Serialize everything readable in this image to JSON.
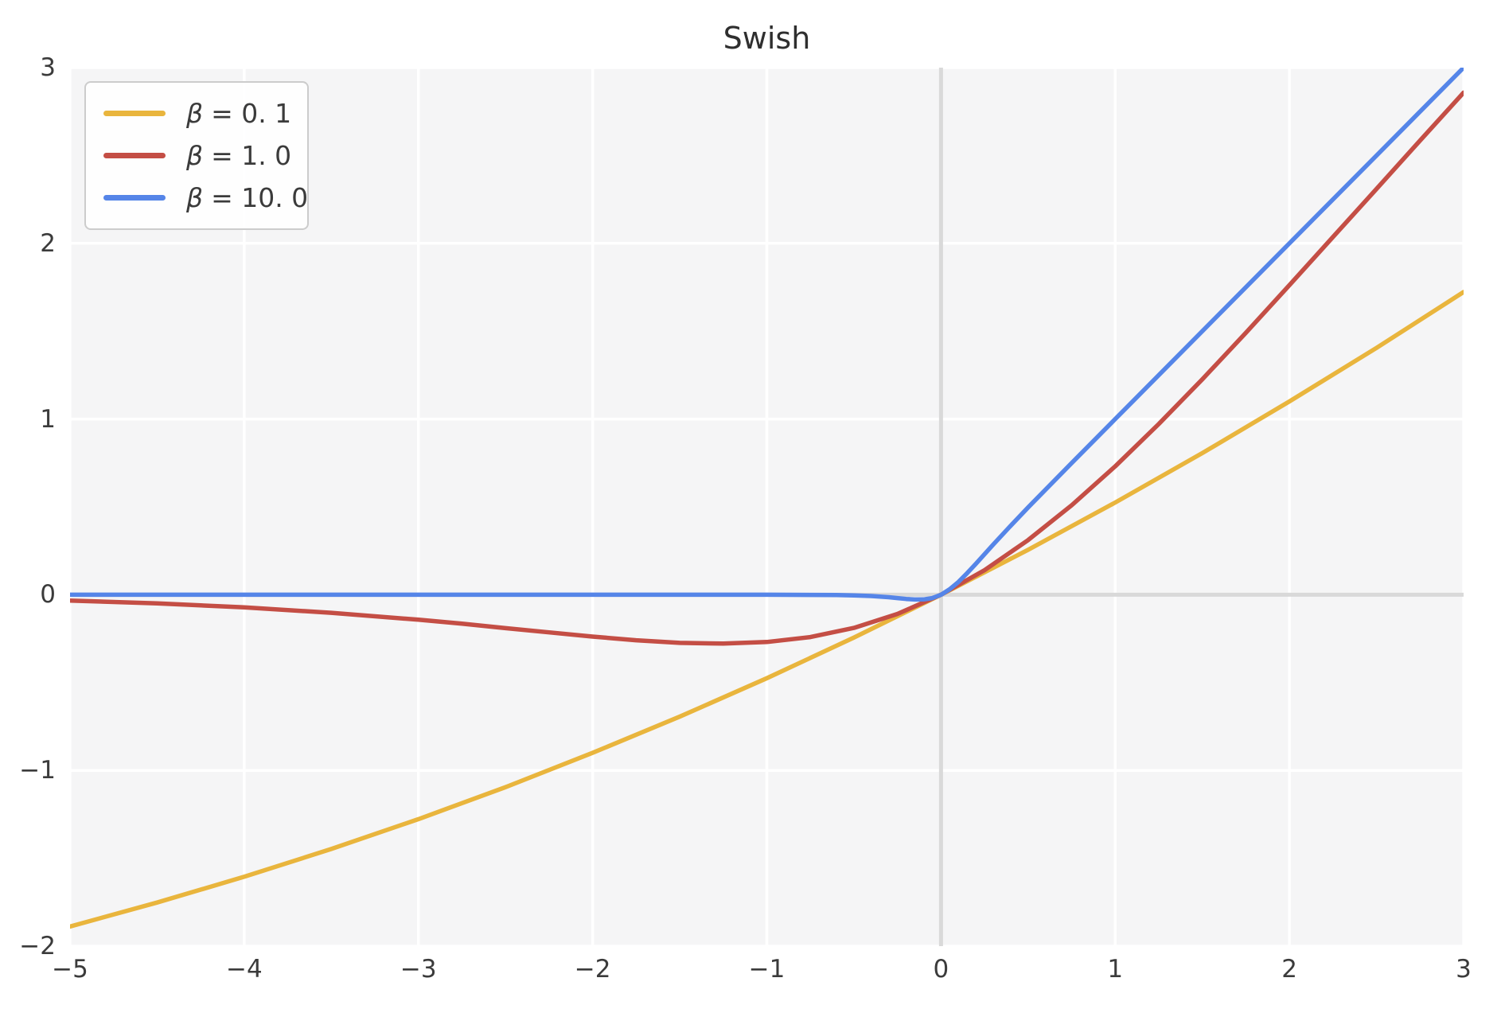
{
  "title": "Swish",
  "style": {
    "figure_bg": "#ffffff",
    "axes_bg": "#f5f5f6",
    "grid_color": "#ffffff",
    "axline_color": "#d9d9d9",
    "tick_color": "#3b3b3b",
    "title_color": "#2f2f2f",
    "legend_bg": "#ffffff",
    "legend_border": "#cccccc",
    "series_yellow": "#E9B53D",
    "series_red": "#C44E45",
    "series_blue": "#5585E8"
  },
  "legend": {
    "position": "upper left",
    "items": [
      {
        "symbol": "β",
        "value": "= 0. 1",
        "color": "#E9B53D"
      },
      {
        "symbol": "β",
        "value": "= 1. 0",
        "color": "#C44E45"
      },
      {
        "symbol": "β",
        "value": "= 10. 0",
        "color": "#5585E8"
      }
    ]
  },
  "chart_data": {
    "type": "line",
    "title": "Swish",
    "xlabel": "",
    "ylabel": "",
    "xlim": [
      -5,
      3
    ],
    "ylim": [
      -2,
      3
    ],
    "grid": true,
    "legend_position": "upper left",
    "xtick_values": [
      -5,
      -4,
      -3,
      -2,
      -1,
      0,
      1,
      2,
      3
    ],
    "xtick_labels": [
      "−5",
      "−4",
      "−3",
      "−2",
      "−1",
      "0",
      "1",
      "2",
      "3"
    ],
    "ytick_values": [
      -2,
      -1,
      0,
      1,
      2,
      3
    ],
    "ytick_labels": [
      "−2",
      "−1",
      "0",
      "1",
      "2",
      "3"
    ],
    "axlines": {
      "x": 0,
      "y": 0
    },
    "series": [
      {
        "name": "β = 0.1",
        "color": "#E9B53D",
        "x": [
          -5,
          -4.5,
          -4,
          -3.5,
          -3,
          -2.5,
          -2,
          -1.5,
          -1,
          -0.5,
          0,
          0.5,
          1,
          1.5,
          2,
          2.5,
          3
        ],
        "y": [
          -1.888,
          -1.752,
          -1.605,
          -1.447,
          -1.277,
          -1.095,
          -0.9,
          -0.694,
          -0.475,
          -0.244,
          0,
          0.256,
          0.525,
          0.806,
          1.1,
          1.405,
          1.723
        ]
      },
      {
        "name": "β = 1.0",
        "color": "#C44E45",
        "x": [
          -5,
          -4.5,
          -4,
          -3.5,
          -3,
          -2.75,
          -2.5,
          -2.25,
          -2,
          -1.75,
          -1.5,
          -1.25,
          -1,
          -0.75,
          -0.5,
          -0.25,
          0,
          0.25,
          0.5,
          0.75,
          1,
          1.25,
          1.5,
          1.75,
          2,
          2.25,
          2.5,
          2.75,
          3
        ],
        "y": [
          -0.033,
          -0.049,
          -0.072,
          -0.103,
          -0.142,
          -0.165,
          -0.19,
          -0.214,
          -0.238,
          -0.259,
          -0.274,
          -0.278,
          -0.269,
          -0.241,
          -0.189,
          -0.109,
          0,
          0.14,
          0.311,
          0.509,
          0.731,
          0.972,
          1.226,
          1.491,
          1.762,
          2.036,
          2.31,
          2.585,
          2.858
        ]
      },
      {
        "name": "β = 10.0",
        "color": "#5585E8",
        "x": [
          -5,
          -4,
          -3,
          -2,
          -1,
          -0.6,
          -0.5,
          -0.4,
          -0.3,
          -0.25,
          -0.2,
          -0.15,
          -0.1,
          -0.05,
          0,
          0.05,
          0.1,
          0.15,
          0.2,
          0.3,
          0.4,
          0.5,
          0.75,
          1,
          1.5,
          2,
          2.5,
          3
        ],
        "y": [
          0,
          0,
          0,
          0,
          0,
          -0.0015,
          -0.0034,
          -0.0072,
          -0.0142,
          -0.019,
          -0.0238,
          -0.0274,
          -0.0269,
          -0.0189,
          0,
          0.0311,
          0.0731,
          0.1226,
          0.1762,
          0.2858,
          0.3928,
          0.4967,
          0.7496,
          1.0,
          1.5,
          2.0,
          2.5,
          3.0
        ]
      }
    ]
  }
}
